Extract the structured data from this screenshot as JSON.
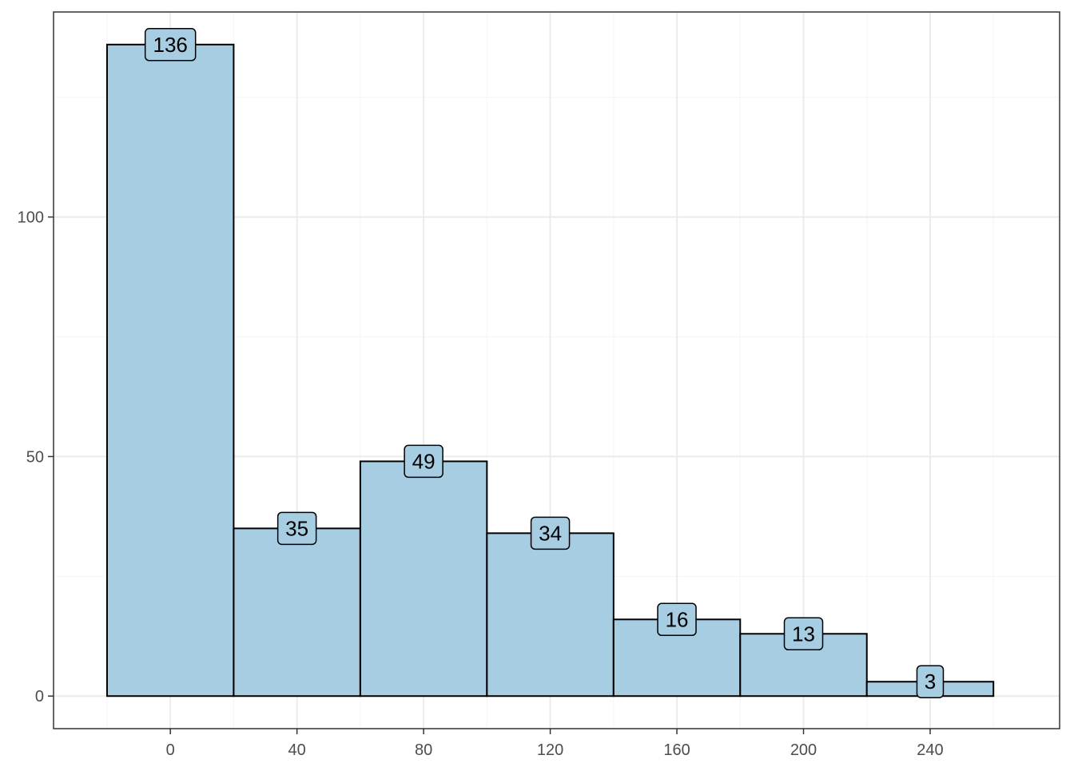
{
  "chart_data": {
    "type": "bar",
    "subtype": "histogram",
    "title": "",
    "xlabel": "",
    "ylabel": "",
    "bin_edges": [
      -20,
      20,
      60,
      100,
      140,
      180,
      220,
      260
    ],
    "bin_centers": [
      0,
      40,
      80,
      120,
      160,
      200,
      240
    ],
    "values": [
      136,
      35,
      49,
      34,
      16,
      13,
      3
    ],
    "labels": [
      "136",
      "35",
      "49",
      "34",
      "16",
      "13",
      "3"
    ],
    "xlim": [
      -36.9,
      280.9
    ],
    "ylim": [
      -6.8,
      142.8
    ],
    "x_ticks": [
      0,
      40,
      80,
      120,
      160,
      200,
      240
    ],
    "x_tick_labels": [
      "0",
      "40",
      "80",
      "120",
      "160",
      "200",
      "240"
    ],
    "x_minor_ticks": [
      -20,
      20,
      60,
      100,
      140,
      180,
      220,
      260
    ],
    "y_ticks": [
      0,
      50,
      100
    ],
    "y_tick_labels": [
      "0",
      "50",
      "100"
    ],
    "y_minor_ticks": [
      25,
      75,
      125
    ],
    "grid": true,
    "legend": "none",
    "colors": {
      "bar_fill": "#a6cde2",
      "bar_stroke": "#000000",
      "label_fill": "#a6cde2",
      "grid_major": "#ebebeb",
      "grid_minor": "#f5f5f5",
      "panel_border": "#333333",
      "tick_text": "#4d4d4d"
    }
  }
}
